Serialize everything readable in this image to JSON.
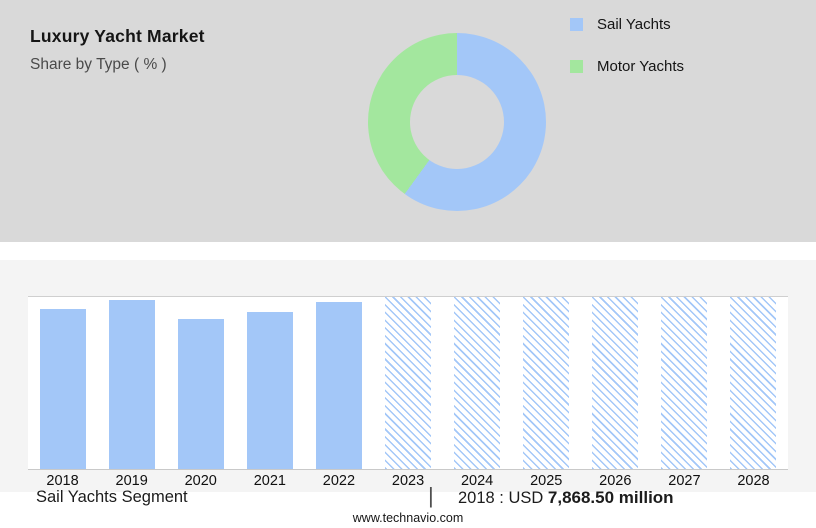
{
  "header": {
    "title": "Luxury Yacht Market",
    "subtitle": "Share by Type ( % )"
  },
  "legend": {
    "items": [
      {
        "label": "Sail Yachts",
        "color": "#a3c7f8"
      },
      {
        "label": "Motor Yachts",
        "color": "#a3e79e"
      }
    ]
  },
  "footer": {
    "segment_label": "Sail Yachts Segment",
    "separator": "|",
    "stat_prefix": "2018 : USD",
    "stat_value": "7,868.50 million",
    "website": "www.technavio.com"
  },
  "chart_data": [
    {
      "type": "pie",
      "donut": true,
      "title": "Luxury Yacht Market — Share by Type ( % )",
      "labels": [
        "Sail Yachts",
        "Motor Yachts"
      ],
      "values": [
        60,
        40
      ],
      "colors": [
        "#a3c7f8",
        "#a3e79e"
      ],
      "legend_position": "right"
    },
    {
      "type": "bar",
      "title": "Sail Yachts Segment — market size by year (2023-2028 forecast shown hatched)",
      "categories": [
        "2018",
        "2019",
        "2020",
        "2021",
        "2022",
        "2023",
        "2024",
        "2025",
        "2026",
        "2027",
        "2028"
      ],
      "values": [
        93,
        98,
        87,
        91,
        97,
        100,
        100,
        100,
        100,
        100,
        100
      ],
      "bar_color": "#a3c7f8",
      "solid_count": 5,
      "forecast_categories": [
        "2023",
        "2024",
        "2025",
        "2026",
        "2027",
        "2028"
      ],
      "forecast_style": "hatched",
      "ylim": [
        0,
        100
      ],
      "grid": "top-and-baseline",
      "xlabel": "",
      "ylabel": ""
    }
  ]
}
